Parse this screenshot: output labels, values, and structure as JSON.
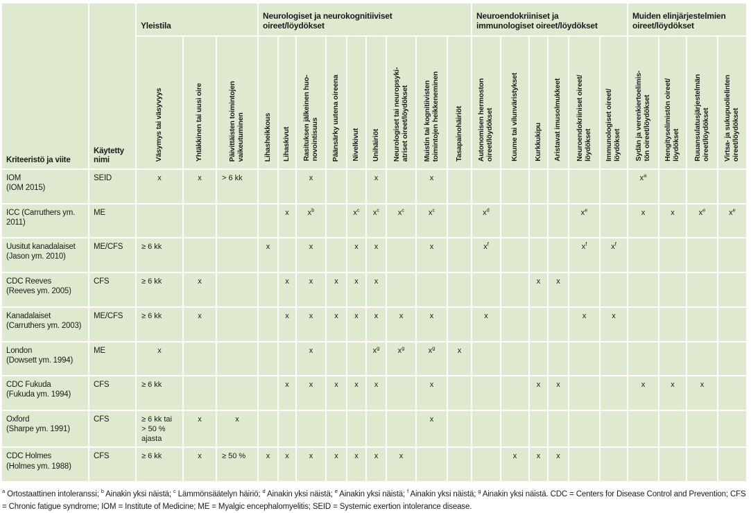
{
  "colors": {
    "cell_bg": "#dfe9d0",
    "grid": "#ffffff",
    "text": "#1a1a1a"
  },
  "table": {
    "corner": "Kriteeristö ja viite",
    "used_name": "Käytetty\nnimi",
    "groups": [
      {
        "label": "Yleistila",
        "span": 3
      },
      {
        "label": "Neurologiset ja neurokognitiiviset\noireet/löydökset",
        "span": 9
      },
      {
        "label": "Neuroendokriiniset ja\nimmunologiset oireet/löydökset",
        "span": 6
      },
      {
        "label": "Muiden elinjärjestelmien\noireet/löydökset",
        "span": 4
      }
    ],
    "columns": [
      "Väsymys tai väsyvyys",
      "Yhtäkkinen tai uusi oire",
      "Päivittäisten toimintojen\nvaikeutuminen",
      "Lihasheikkous",
      "Lihaskivut",
      "Rasituksen jälkeinen huo-\nnovointisuus",
      "Päänsärky uutena oireena",
      "Nivelkivut",
      "Unihäiriöt",
      "Neurologiset tai neuropsyki-\natriset oireet/löydökset",
      "Muistin tai kognitiivisten\ntoimintojen heikkeneminen",
      "Tasapainohäiriöt",
      "Autonomisen hermoston\noireet/löydökset",
      "Kuume tai vilunväristykset",
      "Kurkkukipu",
      "Aristavat imusolmukkeet",
      "Neuroendokriiniset oireet/\nlöydökset",
      "Immunologiset oireet/\nlöydökset",
      "Sydän ja verenkiertoelimis-\ntön oireet/löydökset",
      "Hengityselimistön oireet/\nlöydökset",
      "Ruuansulatusjärjestelmän\noireet/löydökset",
      "Virtsa- ja sukupuolielinten\noireet/löydökset"
    ],
    "rows": [
      {
        "label": "IOM\n(IOM 2015)",
        "name": "SEID",
        "cells": [
          "x",
          "x",
          "> 6 kk",
          "",
          "",
          "x",
          "",
          "",
          "x",
          "",
          "x",
          "",
          "",
          "",
          "",
          "",
          "",
          "",
          "x^a",
          "",
          "",
          ""
        ]
      },
      {
        "label": "ICC (Carruthers ym.\n2011)",
        "name": "ME",
        "cells": [
          "",
          "",
          "",
          "",
          "x",
          "x^b",
          "",
          "x^c",
          "x^c",
          "x^c",
          "x^c",
          "",
          "x^d",
          "",
          "",
          "",
          "x^e",
          "",
          "x",
          "x",
          "x^e",
          "x^e"
        ]
      },
      {
        "label": "Uusitut kanadalaiset\n(Jason ym. 2010)",
        "name": "ME/CFS",
        "cells": [
          "≥ 6 kk",
          "",
          "",
          "x",
          "",
          "x",
          "",
          "x",
          "x",
          "",
          "x",
          "",
          "x^f",
          "",
          "",
          "",
          "x^f",
          "x^f",
          "",
          "",
          "",
          ""
        ]
      },
      {
        "label": "CDC Reeves\n(Reeves ym. 2005)",
        "name": "CFS",
        "cells": [
          "≥ 6 kk",
          "x",
          "",
          "",
          "x",
          "x",
          "x",
          "x",
          "x",
          "",
          "",
          "",
          "",
          "",
          "x",
          "x",
          "",
          "",
          "",
          "",
          "",
          ""
        ]
      },
      {
        "label": "Kanadalaiset\n(Carruthers ym. 2003)",
        "name": "ME/CFS",
        "cells": [
          "≥ 6 kk",
          "x",
          "",
          "",
          "x",
          "x",
          "x",
          "x",
          "x",
          "x",
          "x",
          "",
          "x",
          "",
          "",
          "",
          "x",
          "x",
          "",
          "",
          "",
          ""
        ]
      },
      {
        "label": "London\n(Dowsett ym. 1994)",
        "name": "ME",
        "cells": [
          "x",
          "",
          "",
          "",
          "",
          "x",
          "",
          "",
          "x^g",
          "x^g",
          "x^g",
          "x",
          "",
          "",
          "",
          "",
          "",
          "",
          "",
          "",
          "",
          ""
        ]
      },
      {
        "label": "CDC Fukuda\n(Fukuda ym. 1994)",
        "name": "CFS",
        "cells": [
          "≥ 6 kk",
          "",
          "",
          "",
          "x",
          "x",
          "x",
          "x",
          "x",
          "",
          "x",
          "",
          "",
          "",
          "x",
          "x",
          "",
          "",
          "x",
          "x",
          "x",
          ""
        ]
      },
      {
        "label": "Oxford\n(Sharpe ym. 1991)",
        "name": "CFS",
        "cells": [
          "≥ 6 kk tai\n> 50 %\najasta",
          "x",
          "x",
          "",
          "",
          "",
          "",
          "",
          "",
          "",
          "x",
          "",
          "",
          "",
          "",
          "",
          "",
          "",
          "",
          "",
          "",
          ""
        ]
      },
      {
        "label": "CDC Holmes\n(Holmes ym. 1988)",
        "name": "CFS",
        "cells": [
          "≥ 6 kk",
          "x",
          "≥ 50 %",
          "x",
          "x",
          "x",
          "x",
          "x",
          "x",
          "x",
          "",
          "",
          "",
          "x",
          "x",
          "x",
          "",
          "",
          "",
          "",
          "",
          ""
        ]
      }
    ]
  },
  "footnote": "^a^ Ortostaattinen intoleranssi; ^b^ Ainakin yksi näistä; ^c^ Lämmönsäätelyn häiriö; ^d^ Ainakin yksi näistä; ^e^ Ainakin yksi näistä; ^f^ Ainakin yksi näistä; ^g^ Ainakin yksi näistä. CDC = Centers for Disease Control and Prevention; CFS = Chronic fatigue syndrome; IOM = Institute of Medicine; ME = Myalgic encephalomyelitis; SEID = Systemic exertion intolerance disease."
}
